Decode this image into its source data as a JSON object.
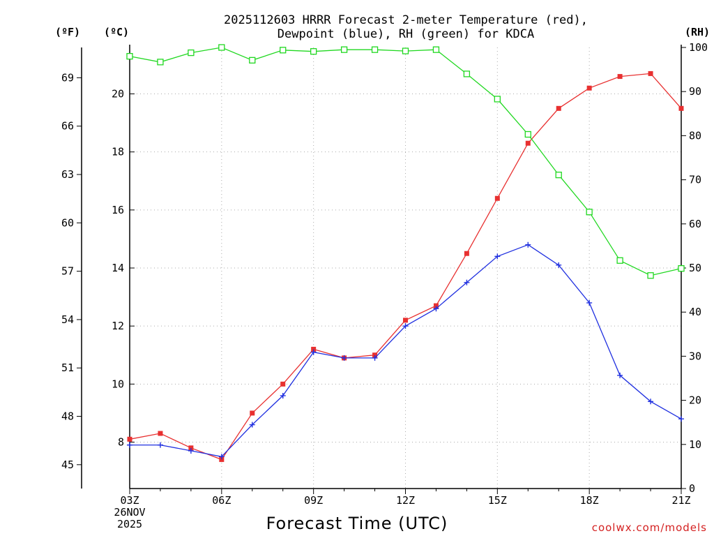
{
  "title_line1": "2025112603 HRRR Forecast 2-meter Temperature (red),",
  "title_line2": "Dewpoint (blue), RH (green) for KDCA",
  "units": {
    "fahrenheit": "(ºF)",
    "celsius": "(ºC)",
    "rh": "(RH)"
  },
  "xlabel": "Forecast Time (UTC)",
  "credit": "coolwx.com/models",
  "date_label": {
    "day": "26NOV",
    "year": "2025"
  },
  "colors": {
    "temperature": "#e83030",
    "dewpoint": "#2030e0",
    "rh": "#20d820",
    "grid": "#aaaaaa"
  },
  "chart_data": {
    "type": "line",
    "title": "2025112603 HRRR Forecast 2-meter Temperature (red), Dewpoint (blue), RH (green) for KDCA",
    "xlabel": "Forecast Time (UTC)",
    "x_hours": [
      3,
      4,
      5,
      6,
      7,
      8,
      9,
      10,
      11,
      12,
      13,
      14,
      15,
      16,
      17,
      18,
      19,
      20,
      21
    ],
    "xlim": [
      3,
      21
    ],
    "x_ticks": [
      3,
      6,
      9,
      12,
      15,
      18,
      21
    ],
    "x_tick_labels": [
      "03Z",
      "06Z",
      "09Z",
      "12Z",
      "15Z",
      "18Z",
      "21Z"
    ],
    "celsius_axis": {
      "ylim": [
        6.4,
        21.6
      ],
      "ticks": [
        8,
        10,
        12,
        14,
        16,
        18,
        20
      ],
      "tick_labels": [
        "8",
        "10",
        "12",
        "14",
        "16",
        "18",
        "20"
      ]
    },
    "fahrenheit_axis": {
      "ylim": [
        43.52,
        70.88
      ],
      "ticks": [
        45,
        48,
        51,
        54,
        57,
        60,
        63,
        66,
        69
      ],
      "tick_labels": [
        "45",
        "48",
        "51",
        "54",
        "57",
        "60",
        "63",
        "66",
        "69"
      ]
    },
    "rh_axis": {
      "ylim": [
        0,
        100
      ],
      "ticks": [
        0,
        10,
        20,
        30,
        40,
        50,
        60,
        70,
        80,
        90,
        100
      ],
      "tick_labels": [
        "0",
        "10",
        "20",
        "30",
        "40",
        "50",
        "60",
        "70",
        "80",
        "90",
        "100"
      ]
    },
    "series": [
      {
        "name": "Temperature",
        "axis": "celsius",
        "marker": "square",
        "values": [
          8.1,
          8.3,
          7.8,
          7.4,
          9.0,
          10.0,
          11.2,
          10.9,
          11.0,
          12.2,
          12.7,
          14.5,
          16.4,
          18.3,
          19.5,
          20.2,
          20.6,
          20.7,
          19.5
        ]
      },
      {
        "name": "Dewpoint",
        "axis": "celsius",
        "marker": "plus",
        "values": [
          7.9,
          7.9,
          7.7,
          7.5,
          8.6,
          9.6,
          11.1,
          10.9,
          10.9,
          12.0,
          12.6,
          13.5,
          14.4,
          14.8,
          14.1,
          12.8,
          10.3,
          9.4,
          8.8
        ]
      },
      {
        "name": "RH",
        "axis": "rh",
        "marker": "open-square",
        "values": [
          98,
          96.7,
          98.8,
          100,
          97.1,
          99.4,
          99.1,
          99.5,
          99.5,
          99.2,
          99.5,
          94,
          88.3,
          80.3,
          71.1,
          62.7,
          51.7,
          48.3,
          49.9
        ]
      }
    ]
  }
}
